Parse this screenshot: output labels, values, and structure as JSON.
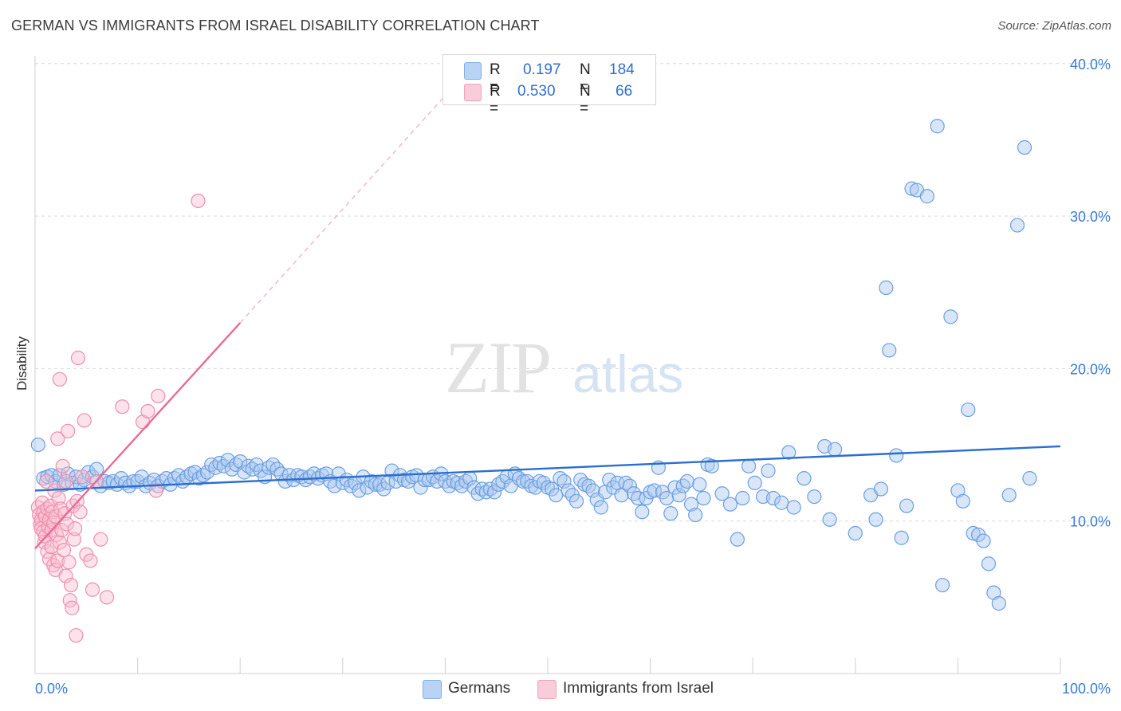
{
  "title": "GERMAN VS IMMIGRANTS FROM ISRAEL DISABILITY CORRELATION CHART",
  "source": "Source: ZipAtlas.com",
  "watermark": {
    "zip": "ZIP",
    "atlas": "atlas"
  },
  "legend_top": [
    {
      "r_label": "R =",
      "r_value": "0.197",
      "n_label": "N =",
      "n_value": "184",
      "color": "#7fb0ea"
    },
    {
      "r_label": "R =",
      "r_value": "0.530",
      "n_label": "N =",
      "n_value": "66",
      "color": "#f2a2b8"
    }
  ],
  "legend_bottom": [
    {
      "label": "Germans",
      "color": "#7fb0ea"
    },
    {
      "label": "Immigrants from Israel",
      "color": "#f2a2b8"
    }
  ],
  "chart_data": {
    "type": "scatter",
    "ylabel": "Disability",
    "xlim": [
      0,
      100
    ],
    "ylim": [
      0,
      40
    ],
    "x_tick_labels": [
      "0.0%",
      "100.0%"
    ],
    "y_ticks": [
      10,
      20,
      30,
      40
    ],
    "y_tick_labels": [
      "10.0%",
      "20.0%",
      "30.0%",
      "40.0%"
    ],
    "grid": true,
    "series": [
      {
        "name": "Germans",
        "color": "#4a86d6",
        "trend": {
          "x0": 0,
          "y0": 12.0,
          "x1": 100,
          "y1": 14.9,
          "color": "#2a6fd0"
        },
        "points": [
          [
            0.3,
            15.0
          ],
          [
            0.8,
            12.8
          ],
          [
            1.2,
            12.9
          ],
          [
            1.6,
            13.0
          ],
          [
            2.0,
            12.6
          ],
          [
            2.4,
            13.0
          ],
          [
            2.8,
            12.4
          ],
          [
            3.2,
            13.1
          ],
          [
            3.6,
            12.5
          ],
          [
            4.0,
            12.9
          ],
          [
            4.4,
            12.4
          ],
          [
            4.8,
            12.7
          ],
          [
            5.2,
            13.2
          ],
          [
            5.6,
            12.9
          ],
          [
            6.0,
            13.4
          ],
          [
            6.4,
            12.3
          ],
          [
            6.8,
            12.6
          ],
          [
            7.2,
            12.5
          ],
          [
            7.6,
            12.6
          ],
          [
            8.0,
            12.4
          ],
          [
            8.4,
            12.8
          ],
          [
            8.8,
            12.5
          ],
          [
            9.2,
            12.3
          ],
          [
            9.6,
            12.6
          ],
          [
            10.0,
            12.6
          ],
          [
            10.4,
            12.9
          ],
          [
            10.8,
            12.3
          ],
          [
            11.2,
            12.5
          ],
          [
            11.6,
            12.7
          ],
          [
            12.0,
            12.3
          ],
          [
            12.4,
            12.6
          ],
          [
            12.8,
            12.8
          ],
          [
            13.2,
            12.4
          ],
          [
            13.6,
            12.8
          ],
          [
            14.0,
            13.0
          ],
          [
            14.4,
            12.6
          ],
          [
            14.8,
            12.9
          ],
          [
            15.2,
            13.1
          ],
          [
            15.6,
            13.2
          ],
          [
            16.0,
            12.8
          ],
          [
            16.4,
            13.0
          ],
          [
            16.8,
            13.2
          ],
          [
            17.2,
            13.7
          ],
          [
            17.6,
            13.5
          ],
          [
            18.0,
            13.8
          ],
          [
            18.4,
            13.6
          ],
          [
            18.8,
            14.0
          ],
          [
            19.2,
            13.4
          ],
          [
            19.6,
            13.7
          ],
          [
            20.0,
            13.9
          ],
          [
            20.4,
            13.2
          ],
          [
            20.8,
            13.6
          ],
          [
            21.2,
            13.4
          ],
          [
            21.6,
            13.7
          ],
          [
            22.0,
            13.3
          ],
          [
            22.4,
            12.9
          ],
          [
            22.8,
            13.5
          ],
          [
            23.2,
            13.7
          ],
          [
            23.6,
            13.4
          ],
          [
            24.0,
            13.1
          ],
          [
            24.4,
            12.6
          ],
          [
            24.8,
            13.0
          ],
          [
            25.2,
            12.7
          ],
          [
            25.6,
            13.0
          ],
          [
            26.0,
            12.9
          ],
          [
            26.4,
            12.7
          ],
          [
            26.8,
            12.9
          ],
          [
            27.2,
            13.1
          ],
          [
            27.6,
            12.8
          ],
          [
            28.0,
            13.0
          ],
          [
            28.4,
            13.1
          ],
          [
            28.8,
            12.6
          ],
          [
            29.2,
            12.3
          ],
          [
            29.6,
            13.1
          ],
          [
            30.0,
            12.5
          ],
          [
            30.4,
            12.7
          ],
          [
            30.8,
            12.3
          ],
          [
            31.2,
            12.5
          ],
          [
            31.6,
            12.0
          ],
          [
            32.0,
            12.9
          ],
          [
            32.4,
            12.2
          ],
          [
            32.8,
            12.6
          ],
          [
            33.2,
            12.4
          ],
          [
            33.6,
            12.4
          ],
          [
            34.0,
            12.1
          ],
          [
            34.4,
            12.5
          ],
          [
            34.8,
            13.3
          ],
          [
            35.2,
            12.6
          ],
          [
            35.6,
            13.0
          ],
          [
            36.0,
            12.7
          ],
          [
            36.4,
            12.6
          ],
          [
            36.8,
            12.9
          ],
          [
            37.2,
            13.0
          ],
          [
            37.6,
            12.2
          ],
          [
            38.0,
            12.7
          ],
          [
            38.4,
            12.7
          ],
          [
            38.8,
            12.9
          ],
          [
            39.2,
            12.6
          ],
          [
            39.6,
            13.1
          ],
          [
            40.0,
            12.6
          ],
          [
            40.4,
            12.3
          ],
          [
            40.8,
            12.6
          ],
          [
            41.2,
            12.5
          ],
          [
            41.6,
            12.3
          ],
          [
            42.0,
            12.6
          ],
          [
            42.4,
            12.8
          ],
          [
            42.8,
            12.2
          ],
          [
            43.2,
            11.8
          ],
          [
            43.6,
            12.1
          ],
          [
            44.0,
            11.9
          ],
          [
            44.4,
            12.1
          ],
          [
            44.8,
            11.9
          ],
          [
            45.2,
            12.4
          ],
          [
            45.6,
            12.6
          ],
          [
            46.0,
            12.9
          ],
          [
            46.4,
            12.3
          ],
          [
            46.8,
            13.1
          ],
          [
            47.2,
            12.8
          ],
          [
            47.6,
            12.6
          ],
          [
            48.0,
            12.6
          ],
          [
            48.4,
            12.3
          ],
          [
            48.8,
            12.2
          ],
          [
            49.2,
            12.6
          ],
          [
            49.6,
            12.5
          ],
          [
            50.0,
            12.2
          ],
          [
            50.4,
            12.1
          ],
          [
            50.8,
            11.7
          ],
          [
            51.2,
            12.8
          ],
          [
            51.6,
            12.6
          ],
          [
            52.0,
            12.0
          ],
          [
            52.4,
            11.7
          ],
          [
            52.8,
            11.3
          ],
          [
            53.2,
            12.7
          ],
          [
            53.6,
            12.4
          ],
          [
            54.0,
            12.3
          ],
          [
            54.4,
            12.0
          ],
          [
            54.8,
            11.4
          ],
          [
            55.2,
            10.9
          ],
          [
            55.6,
            11.9
          ],
          [
            56.0,
            12.7
          ],
          [
            56.4,
            12.2
          ],
          [
            56.8,
            12.5
          ],
          [
            57.2,
            11.7
          ],
          [
            57.6,
            12.5
          ],
          [
            58.0,
            12.3
          ],
          [
            58.4,
            11.8
          ],
          [
            58.8,
            11.5
          ],
          [
            59.2,
            10.6
          ],
          [
            59.6,
            11.5
          ],
          [
            60.0,
            11.9
          ],
          [
            60.4,
            12.0
          ],
          [
            60.8,
            13.5
          ],
          [
            61.2,
            11.9
          ],
          [
            61.6,
            11.5
          ],
          [
            62.0,
            10.5
          ],
          [
            62.4,
            12.2
          ],
          [
            62.8,
            11.7
          ],
          [
            63.2,
            12.3
          ],
          [
            63.6,
            12.6
          ],
          [
            64.0,
            11.1
          ],
          [
            64.4,
            10.4
          ],
          [
            64.8,
            12.4
          ],
          [
            65.2,
            11.5
          ],
          [
            65.6,
            13.7
          ],
          [
            66.0,
            13.6
          ],
          [
            67.0,
            11.8
          ],
          [
            67.8,
            11.1
          ],
          [
            68.5,
            8.8
          ],
          [
            69.0,
            11.5
          ],
          [
            69.6,
            13.6
          ],
          [
            70.2,
            12.5
          ],
          [
            71.0,
            11.6
          ],
          [
            71.5,
            13.3
          ],
          [
            72.0,
            11.5
          ],
          [
            72.8,
            11.2
          ],
          [
            73.5,
            14.5
          ],
          [
            74.0,
            10.9
          ],
          [
            75.0,
            12.8
          ],
          [
            76.0,
            11.6
          ],
          [
            77.0,
            14.9
          ],
          [
            77.5,
            10.1
          ],
          [
            78.0,
            14.7
          ],
          [
            80.0,
            9.2
          ],
          [
            81.5,
            11.7
          ],
          [
            82.0,
            10.1
          ],
          [
            82.5,
            12.1
          ],
          [
            83.0,
            25.3
          ],
          [
            83.3,
            21.2
          ],
          [
            84.0,
            14.3
          ],
          [
            84.5,
            8.9
          ],
          [
            85.0,
            11.0
          ],
          [
            85.5,
            31.8
          ],
          [
            86.0,
            31.7
          ],
          [
            87.0,
            31.3
          ],
          [
            88.0,
            35.9
          ],
          [
            88.5,
            5.8
          ],
          [
            89.3,
            23.4
          ],
          [
            90.0,
            12.0
          ],
          [
            90.5,
            11.3
          ],
          [
            91.0,
            17.3
          ],
          [
            91.5,
            9.2
          ],
          [
            92.0,
            9.1
          ],
          [
            92.5,
            8.7
          ],
          [
            93.0,
            7.2
          ],
          [
            93.5,
            5.3
          ],
          [
            94.0,
            4.6
          ],
          [
            95.0,
            11.7
          ],
          [
            95.8,
            29.4
          ],
          [
            96.5,
            34.5
          ],
          [
            97.0,
            12.8
          ]
        ]
      },
      {
        "name": "Immigrants from Israel",
        "color": "#ee87a6",
        "trend": {
          "x0": 0,
          "y0": 8.2,
          "x1": 20,
          "y1": 23.0,
          "color": "#e96b95"
        },
        "trend_extension": {
          "x0": 20,
          "y0": 23.0,
          "x1": 40,
          "y1": 37.9
        },
        "points": [
          [
            0.3,
            10.9
          ],
          [
            0.4,
            10.4
          ],
          [
            0.5,
            9.8
          ],
          [
            0.6,
            10.1
          ],
          [
            0.6,
            9.5
          ],
          [
            0.7,
            11.2
          ],
          [
            0.8,
            10.6
          ],
          [
            0.8,
            9.3
          ],
          [
            0.9,
            8.6
          ],
          [
            1.0,
            10.3
          ],
          [
            1.0,
            9.0
          ],
          [
            1.1,
            12.6
          ],
          [
            1.2,
            10.8
          ],
          [
            1.2,
            8.0
          ],
          [
            1.3,
            9.6
          ],
          [
            1.4,
            10.1
          ],
          [
            1.4,
            7.5
          ],
          [
            1.5,
            11.0
          ],
          [
            1.6,
            9.4
          ],
          [
            1.6,
            8.3
          ],
          [
            1.7,
            10.6
          ],
          [
            1.8,
            9.9
          ],
          [
            1.8,
            7.1
          ],
          [
            1.9,
            12.0
          ],
          [
            2.0,
            10.3
          ],
          [
            2.0,
            6.8
          ],
          [
            2.1,
            9.1
          ],
          [
            2.2,
            15.4
          ],
          [
            2.2,
            7.4
          ],
          [
            2.3,
            11.5
          ],
          [
            2.4,
            19.3
          ],
          [
            2.4,
            8.6
          ],
          [
            2.5,
            10.8
          ],
          [
            2.6,
            9.4
          ],
          [
            2.7,
            13.6
          ],
          [
            2.8,
            8.1
          ],
          [
            2.9,
            10.5
          ],
          [
            3.0,
            12.6
          ],
          [
            3.0,
            6.4
          ],
          [
            3.1,
            9.8
          ],
          [
            3.2,
            15.9
          ],
          [
            3.3,
            7.3
          ],
          [
            3.4,
            4.8
          ],
          [
            3.5,
            5.8
          ],
          [
            3.6,
            4.3
          ],
          [
            3.7,
            11.0
          ],
          [
            3.8,
            8.8
          ],
          [
            3.9,
            9.5
          ],
          [
            4.0,
            2.5
          ],
          [
            4.1,
            11.3
          ],
          [
            4.2,
            20.7
          ],
          [
            4.4,
            10.6
          ],
          [
            4.6,
            12.9
          ],
          [
            4.8,
            16.6
          ],
          [
            5.0,
            7.8
          ],
          [
            5.4,
            7.4
          ],
          [
            5.6,
            5.5
          ],
          [
            6.0,
            12.6
          ],
          [
            6.4,
            8.8
          ],
          [
            7.0,
            5.0
          ],
          [
            8.5,
            17.5
          ],
          [
            10.5,
            16.5
          ],
          [
            11.0,
            17.2
          ],
          [
            11.8,
            12.0
          ],
          [
            12.0,
            18.2
          ],
          [
            15.9,
            31.0
          ]
        ]
      }
    ]
  }
}
